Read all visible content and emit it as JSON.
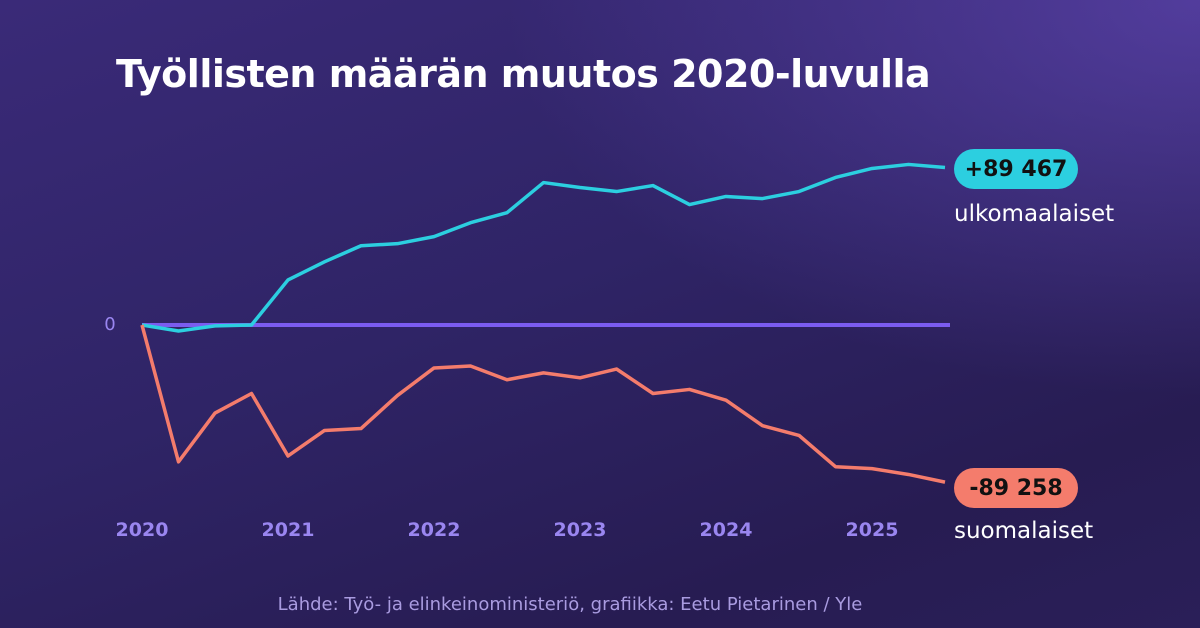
{
  "chart_data": {
    "type": "line",
    "title": "Työllisten määrän muutos 2020-luvulla",
    "source": "Lähde: Työ- ja elinkeinoministeriö, grafiikka: Eetu Pietarinen / Yle",
    "x_ticks": [
      "2020",
      "2021",
      "2022",
      "2023",
      "2024",
      "2025"
    ],
    "y_ticks": [
      "0"
    ],
    "grid": false,
    "zero_line_color": "#7b5cf0",
    "x": [
      2020.0,
      2020.25,
      2020.5,
      2020.75,
      2021.0,
      2021.25,
      2021.5,
      2021.75,
      2022.0,
      2022.25,
      2022.5,
      2022.75,
      2023.0,
      2023.25,
      2023.5,
      2023.75,
      2024.0,
      2024.25,
      2024.5,
      2024.75,
      2025.0,
      2025.25,
      2025.5
    ],
    "series": [
      {
        "name": "ulkomaalaiset",
        "color": "#2ccfe0",
        "end_label": "+89 467",
        "values": [
          0,
          -3400,
          -500,
          0,
          25600,
          35900,
          45000,
          46200,
          50200,
          58100,
          63800,
          80900,
          78100,
          75800,
          79200,
          68400,
          73000,
          71800,
          75800,
          83800,
          88900,
          91200,
          89467
        ]
      },
      {
        "name": "suomalaiset",
        "color": "#f47c6c",
        "end_label": "-89 258",
        "values": [
          0,
          -77700,
          -50000,
          -38900,
          -74400,
          -59900,
          -58800,
          -40000,
          -24400,
          -23300,
          -31100,
          -27200,
          -30000,
          -25000,
          -38900,
          -36600,
          -42700,
          -57200,
          -62700,
          -80500,
          -81600,
          -84900,
          -89258
        ]
      }
    ]
  }
}
